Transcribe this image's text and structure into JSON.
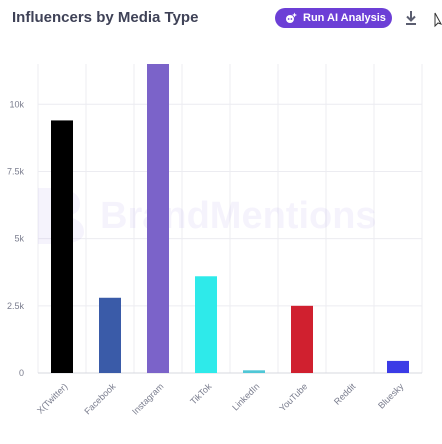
{
  "header": {
    "title": "Influencers by Media Type",
    "ai_button_label": "Run AI Analysis",
    "ai_icon": "sparkle-bot-icon",
    "download_icon": "download-icon"
  },
  "watermark": {
    "text": "BrandMentions"
  },
  "colors": {
    "title": "#3f4257",
    "accent": "#6c3fd6",
    "grid": "#ececf1",
    "axis_text": "#7a7d8e"
  },
  "chart_data": {
    "type": "bar",
    "title": "Influencers by Media Type",
    "xlabel": "",
    "ylabel": "",
    "categories": [
      "X(Twitter)",
      "Facebook",
      "Instagram",
      "TikTok",
      "LinkedIn",
      "YouTube",
      "Reddit",
      "Bluesky"
    ],
    "values": [
      9400,
      2800,
      11500,
      3600,
      100,
      2500,
      0,
      450
    ],
    "bar_colors": [
      "#000000",
      "#3a5ba8",
      "#7b63c9",
      "#2eeaea",
      "#4fc7d6",
      "#d0202f",
      "#cccccc",
      "#3b3be6"
    ],
    "ylim": [
      0,
      11500
    ],
    "yticks": [
      {
        "value": 0,
        "label": "0"
      },
      {
        "value": 2500,
        "label": "2.5k"
      },
      {
        "value": 5000,
        "label": "5k"
      },
      {
        "value": 7500,
        "label": "7.5k"
      },
      {
        "value": 10000,
        "label": "10k"
      }
    ],
    "grid": true,
    "legend": "none"
  }
}
